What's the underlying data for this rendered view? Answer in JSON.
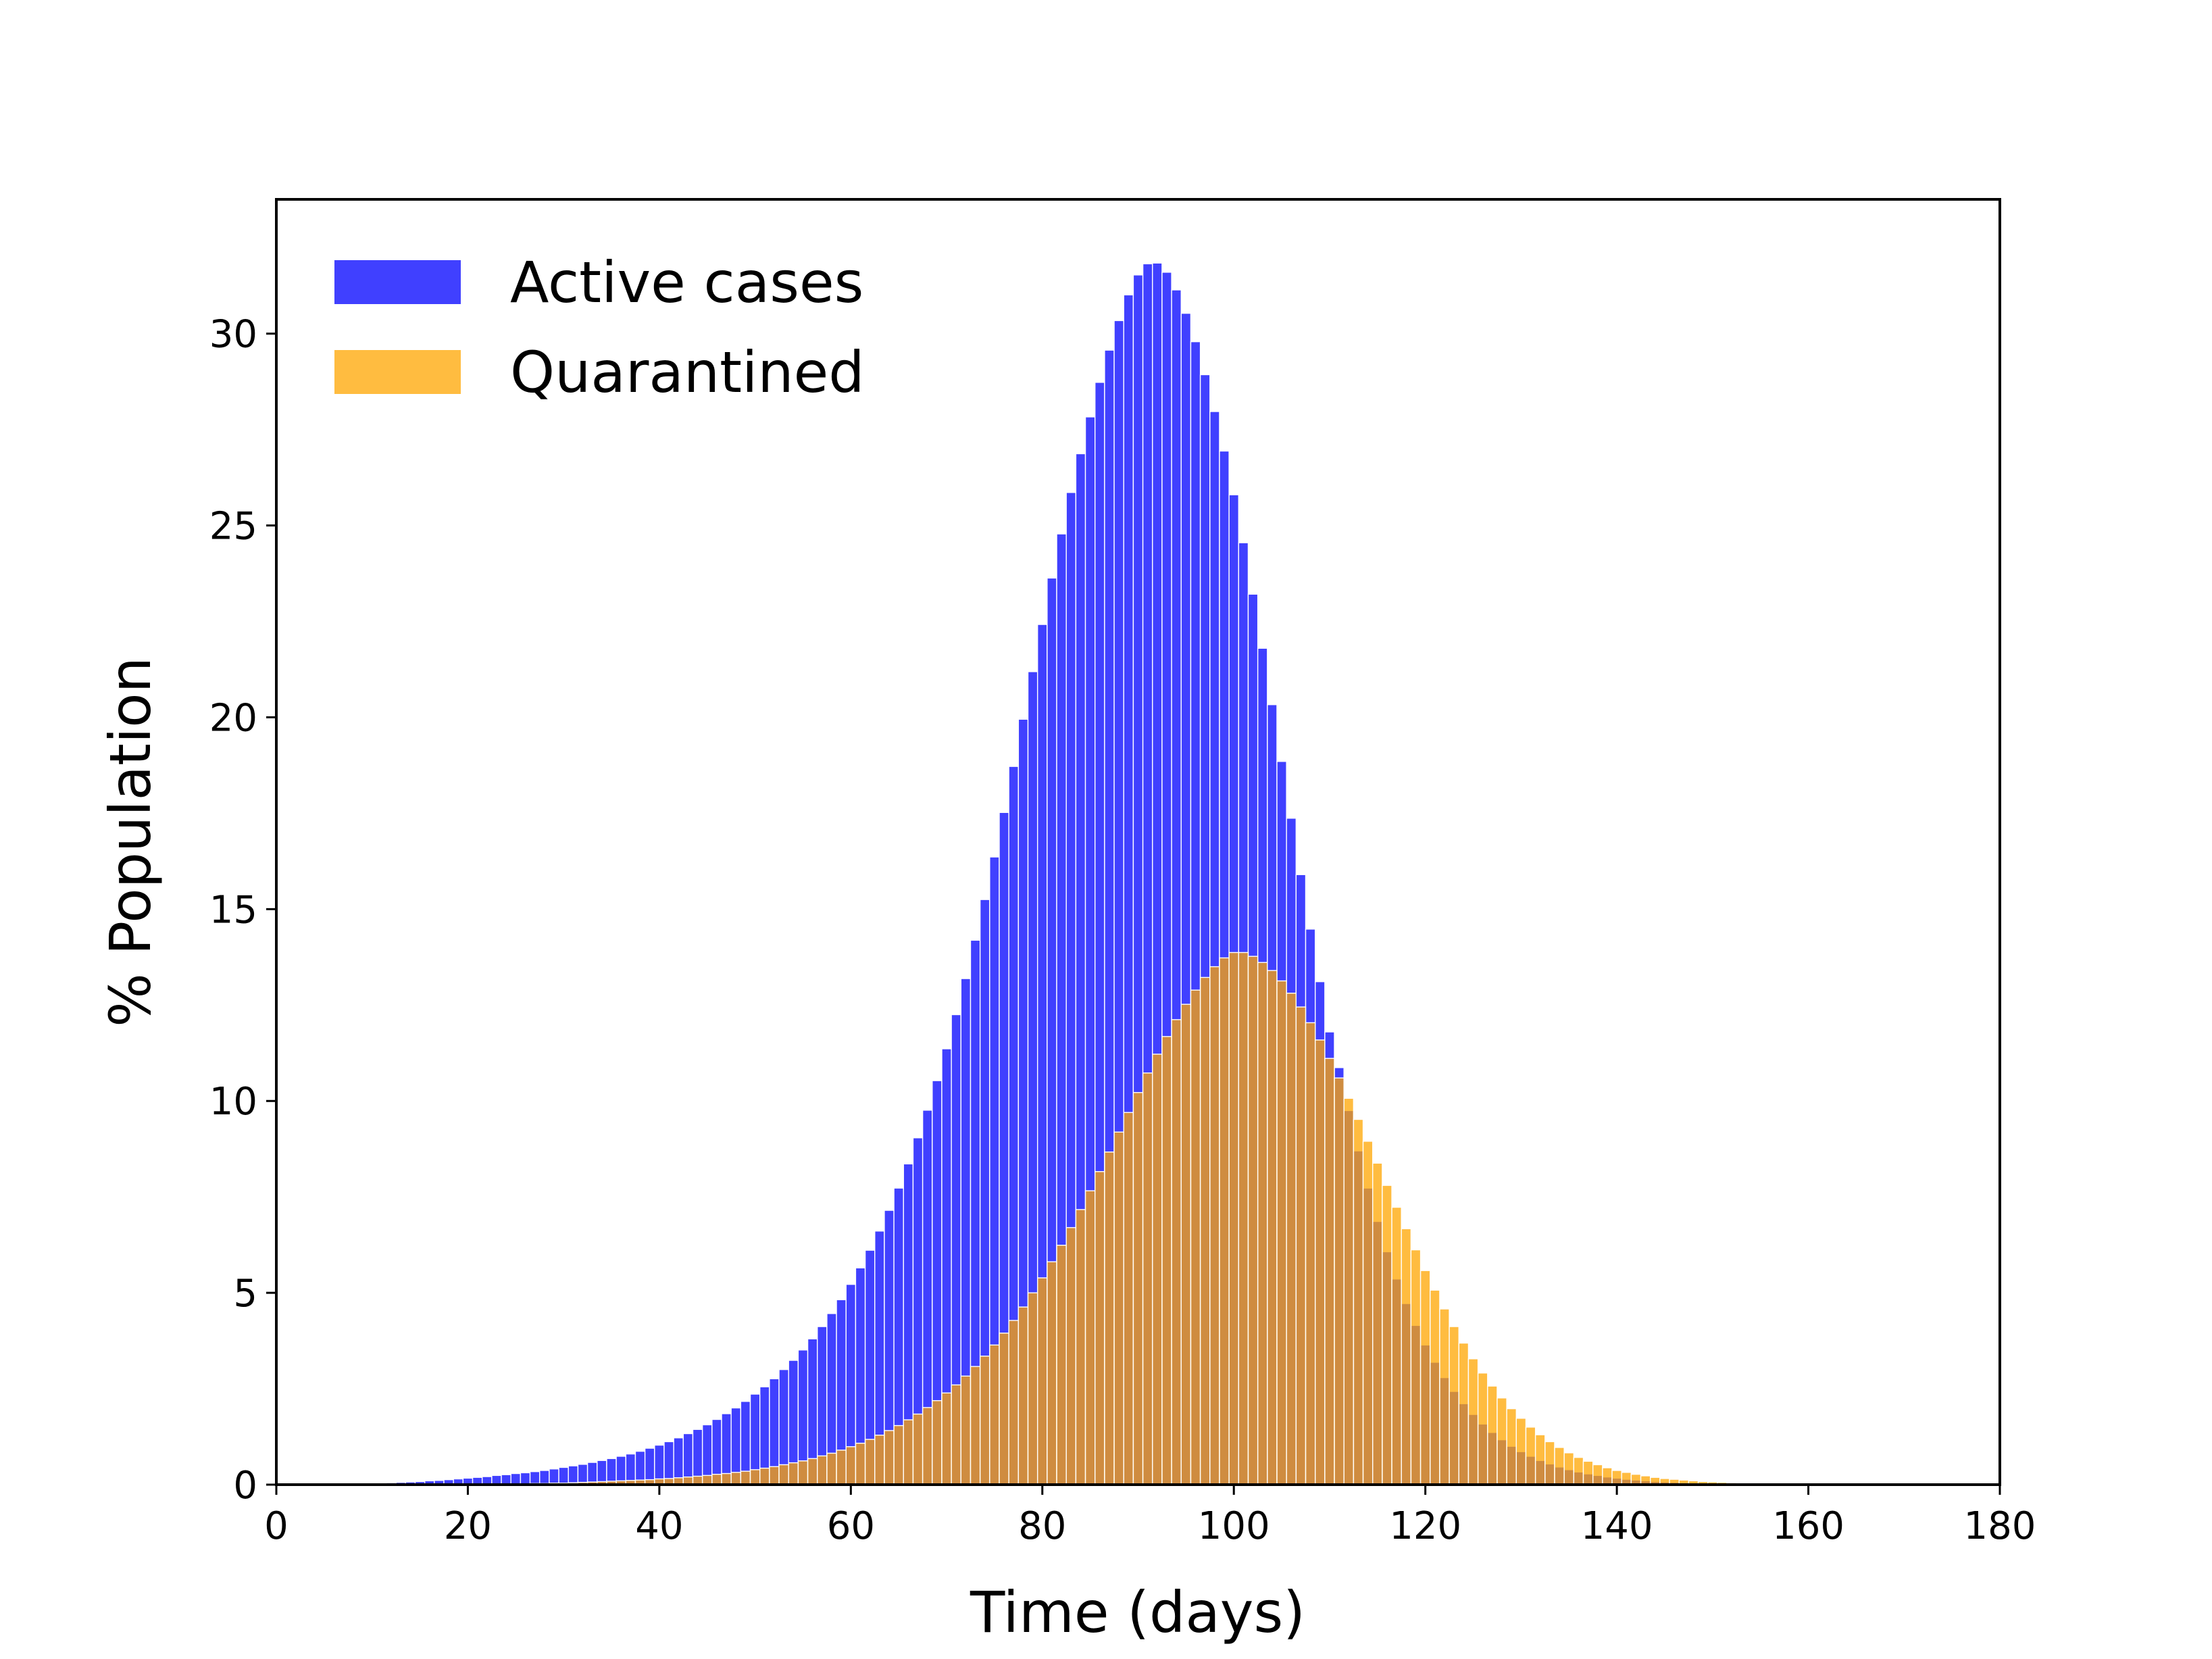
{
  "chart_data": {
    "type": "bar",
    "title": "",
    "xlabel": "Time (days)",
    "ylabel": "% Population",
    "xlim": [
      0,
      180
    ],
    "ylim": [
      0,
      33.5
    ],
    "x_ticks": [
      0,
      20,
      40,
      60,
      80,
      100,
      120,
      140,
      160,
      180
    ],
    "y_ticks": [
      0,
      5,
      10,
      15,
      20,
      25,
      30
    ],
    "grid": false,
    "legend_position": "top-left",
    "x_start": 0,
    "x_step": 1,
    "series": [
      {
        "name": "Active cases",
        "color": "#0000ff",
        "opacity": 0.75,
        "values": [
          0.0,
          0.01,
          0.01,
          0.01,
          0.01,
          0.01,
          0.01,
          0.01,
          0.02,
          0.02,
          0.03,
          0.04,
          0.05,
          0.06,
          0.07,
          0.08,
          0.1,
          0.11,
          0.13,
          0.15,
          0.17,
          0.19,
          0.21,
          0.24,
          0.26,
          0.29,
          0.31,
          0.34,
          0.37,
          0.41,
          0.45,
          0.49,
          0.53,
          0.58,
          0.63,
          0.68,
          0.74,
          0.8,
          0.87,
          0.95,
          1.03,
          1.12,
          1.22,
          1.33,
          1.44,
          1.56,
          1.7,
          1.85,
          2.0,
          2.17,
          2.36,
          2.55,
          2.76,
          3.0,
          3.24,
          3.51,
          3.8,
          4.12,
          4.46,
          4.82,
          5.22,
          5.65,
          6.11,
          6.61,
          7.15,
          7.73,
          8.36,
          9.04,
          9.76,
          10.53,
          11.36,
          12.25,
          13.19,
          14.19,
          15.25,
          16.36,
          17.52,
          18.72,
          19.95,
          21.19,
          22.42,
          23.63,
          24.78,
          25.86,
          26.87,
          27.83,
          28.73,
          29.57,
          30.34,
          31.01,
          31.53,
          31.82,
          31.84,
          31.6,
          31.14,
          30.53,
          29.79,
          28.93,
          27.97,
          26.94,
          25.8,
          24.55,
          23.21,
          21.8,
          20.33,
          18.85,
          17.37,
          15.9,
          14.48,
          13.11,
          11.8,
          10.87,
          9.75,
          8.7,
          7.73,
          6.86,
          6.07,
          5.36,
          4.72,
          4.15,
          3.64,
          3.19,
          2.79,
          2.43,
          2.11,
          1.83,
          1.58,
          1.36,
          1.17,
          1.0,
          0.86,
          0.74,
          0.63,
          0.54,
          0.46,
          0.39,
          0.33,
          0.28,
          0.24,
          0.2,
          0.17,
          0.14,
          0.12,
          0.1,
          0.08,
          0.07,
          0.06,
          0.05,
          0.04,
          0.03,
          0.03,
          0.02,
          0.02,
          0.02,
          0.01,
          0.01,
          0.01,
          0.01,
          0.01,
          0.0,
          0.0,
          0.0,
          0.0,
          0.0,
          0.0,
          0.0,
          0.0,
          0.0,
          0.0,
          0.0,
          0.0,
          0.0,
          0.0,
          0.0,
          0.0,
          0.0,
          0.0,
          0.0,
          0.0,
          0.0,
          0.0,
          0.0,
          0.0,
          0.0,
          0.0
        ]
      },
      {
        "name": "Quarantined",
        "color": "#ffa500",
        "opacity": 0.75,
        "values": [
          0.0,
          0.0,
          0.0,
          0.0,
          0.0,
          0.0,
          0.0,
          0.0,
          0.0,
          0.0,
          0.0,
          0.0,
          0.0,
          0.0,
          0.0,
          0.0,
          0.0,
          0.0,
          0.0,
          0.01,
          0.01,
          0.01,
          0.01,
          0.01,
          0.02,
          0.02,
          0.02,
          0.03,
          0.03,
          0.04,
          0.04,
          0.05,
          0.06,
          0.07,
          0.08,
          0.09,
          0.1,
          0.11,
          0.12,
          0.13,
          0.15,
          0.16,
          0.18,
          0.2,
          0.22,
          0.24,
          0.27,
          0.29,
          0.32,
          0.35,
          0.39,
          0.43,
          0.47,
          0.52,
          0.57,
          0.62,
          0.68,
          0.75,
          0.82,
          0.9,
          0.99,
          1.08,
          1.18,
          1.29,
          1.41,
          1.54,
          1.69,
          1.84,
          2.01,
          2.19,
          2.39,
          2.6,
          2.83,
          3.08,
          3.35,
          3.64,
          3.95,
          4.28,
          4.63,
          5.0,
          5.39,
          5.81,
          6.24,
          6.7,
          7.17,
          7.66,
          8.16,
          8.67,
          9.19,
          9.7,
          10.22,
          10.73,
          11.22,
          11.68,
          12.12,
          12.52,
          12.89,
          13.22,
          13.5,
          13.73,
          13.87,
          13.87,
          13.77,
          13.61,
          13.4,
          13.13,
          12.81,
          12.45,
          12.04,
          11.59,
          11.11,
          10.6,
          10.07,
          9.52,
          8.95,
          8.38,
          7.8,
          7.23,
          6.67,
          6.12,
          5.58,
          5.07,
          4.58,
          4.12,
          3.69,
          3.28,
          2.91,
          2.57,
          2.26,
          1.98,
          1.73,
          1.5,
          1.3,
          1.12,
          0.97,
          0.83,
          0.71,
          0.61,
          0.52,
          0.44,
          0.37,
          0.32,
          0.27,
          0.23,
          0.19,
          0.16,
          0.14,
          0.12,
          0.1,
          0.08,
          0.07,
          0.06,
          0.05,
          0.04,
          0.03,
          0.03,
          0.02,
          0.02,
          0.02,
          0.01,
          0.01,
          0.01,
          0.01,
          0.01,
          0.0,
          0.0,
          0.0,
          0.0,
          0.0,
          0.0,
          0.0,
          0.0,
          0.0,
          0.0,
          0.0,
          0.0,
          0.0,
          0.0,
          0.0,
          0.0,
          0.0,
          0.0,
          0.0,
          0.0,
          0.0
        ]
      }
    ]
  }
}
